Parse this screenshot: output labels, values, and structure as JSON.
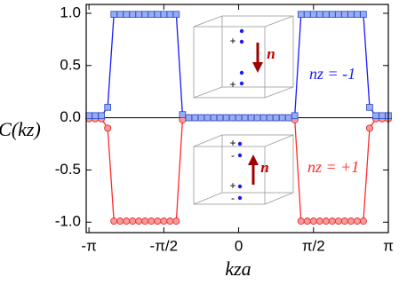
{
  "chart_data": {
    "type": "line",
    "xlabel": "kza",
    "ylabel": "C(kz)",
    "xlim": [
      -3.2,
      3.1416
    ],
    "ylim": [
      -1.1,
      1.085
    ],
    "xticks": [
      {
        "value": -3.1416,
        "label": "-π"
      },
      {
        "value": -1.5708,
        "label": "-π/2"
      },
      0,
      {
        "value": 1.5708,
        "label": "π/2"
      },
      {
        "value": 3.1416,
        "label": "π"
      }
    ],
    "yticks": [
      {
        "value": 1,
        "label": "1.0"
      },
      0.5,
      {
        "value": 0,
        "label": "0.0"
      },
      -0.5,
      {
        "value": -1,
        "label": "-1.0"
      }
    ],
    "x": [
      -3.1416,
      -3.0107,
      -2.8798,
      -2.7489,
      -2.618,
      -2.4871,
      -2.3562,
      -2.2253,
      -2.0944,
      -1.9635,
      -1.8326,
      -1.7017,
      -1.5708,
      -1.4399,
      -1.309,
      -1.1781,
      -1.0472,
      -0.9163,
      -0.7854,
      -0.6545,
      -0.5236,
      -0.3927,
      -0.2618,
      -0.1309,
      0,
      0.1309,
      0.2618,
      0.3927,
      0.5236,
      0.6545,
      0.7854,
      0.9163,
      1.0472,
      1.1781,
      1.309,
      1.4399,
      1.5708,
      1.7017,
      1.8326,
      1.9635,
      2.0944,
      2.2253,
      2.3562,
      2.4871,
      2.618,
      2.7489,
      2.8798,
      3.0107,
      3.1416
    ],
    "series": [
      {
        "name": "nz = +1",
        "color": "#ff2a2a",
        "marker": "circle",
        "values": [
          -0.01,
          -0.01,
          -0.01,
          -0.1,
          -0.99,
          -0.99,
          -0.99,
          -0.99,
          -0.99,
          -0.99,
          -0.99,
          -0.99,
          -0.99,
          -0.99,
          -0.99,
          -0.02,
          0,
          0,
          0,
          0,
          0,
          0,
          0,
          0,
          0,
          0,
          0,
          0,
          0,
          0,
          0,
          0,
          0,
          -0.02,
          -0.99,
          -0.99,
          -0.99,
          -0.99,
          -0.99,
          -0.99,
          -0.99,
          -0.99,
          -0.99,
          -0.99,
          -0.99,
          -0.1,
          -0.01,
          -0.01,
          -0.01
        ]
      },
      {
        "name": "nz = -1",
        "color": "#1a1aff",
        "marker": "square",
        "values": [
          0.02,
          0.02,
          0.02,
          0.1,
          0.99,
          0.99,
          0.99,
          0.99,
          0.99,
          0.99,
          0.99,
          0.99,
          0.99,
          0.99,
          0.99,
          0.03,
          0,
          0,
          0,
          0,
          0,
          0,
          0,
          0,
          0,
          0,
          0,
          0,
          0,
          0,
          0,
          0,
          0,
          0.02,
          0.99,
          0.99,
          0.99,
          0.99,
          0.99,
          0.99,
          0.99,
          0.99,
          0.99,
          0.99,
          0.99,
          0.1,
          0.02,
          0.02,
          0.02
        ]
      }
    ],
    "annotations": [
      "n",
      "+",
      "+",
      "n",
      "+",
      "-",
      "+",
      "-"
    ]
  }
}
